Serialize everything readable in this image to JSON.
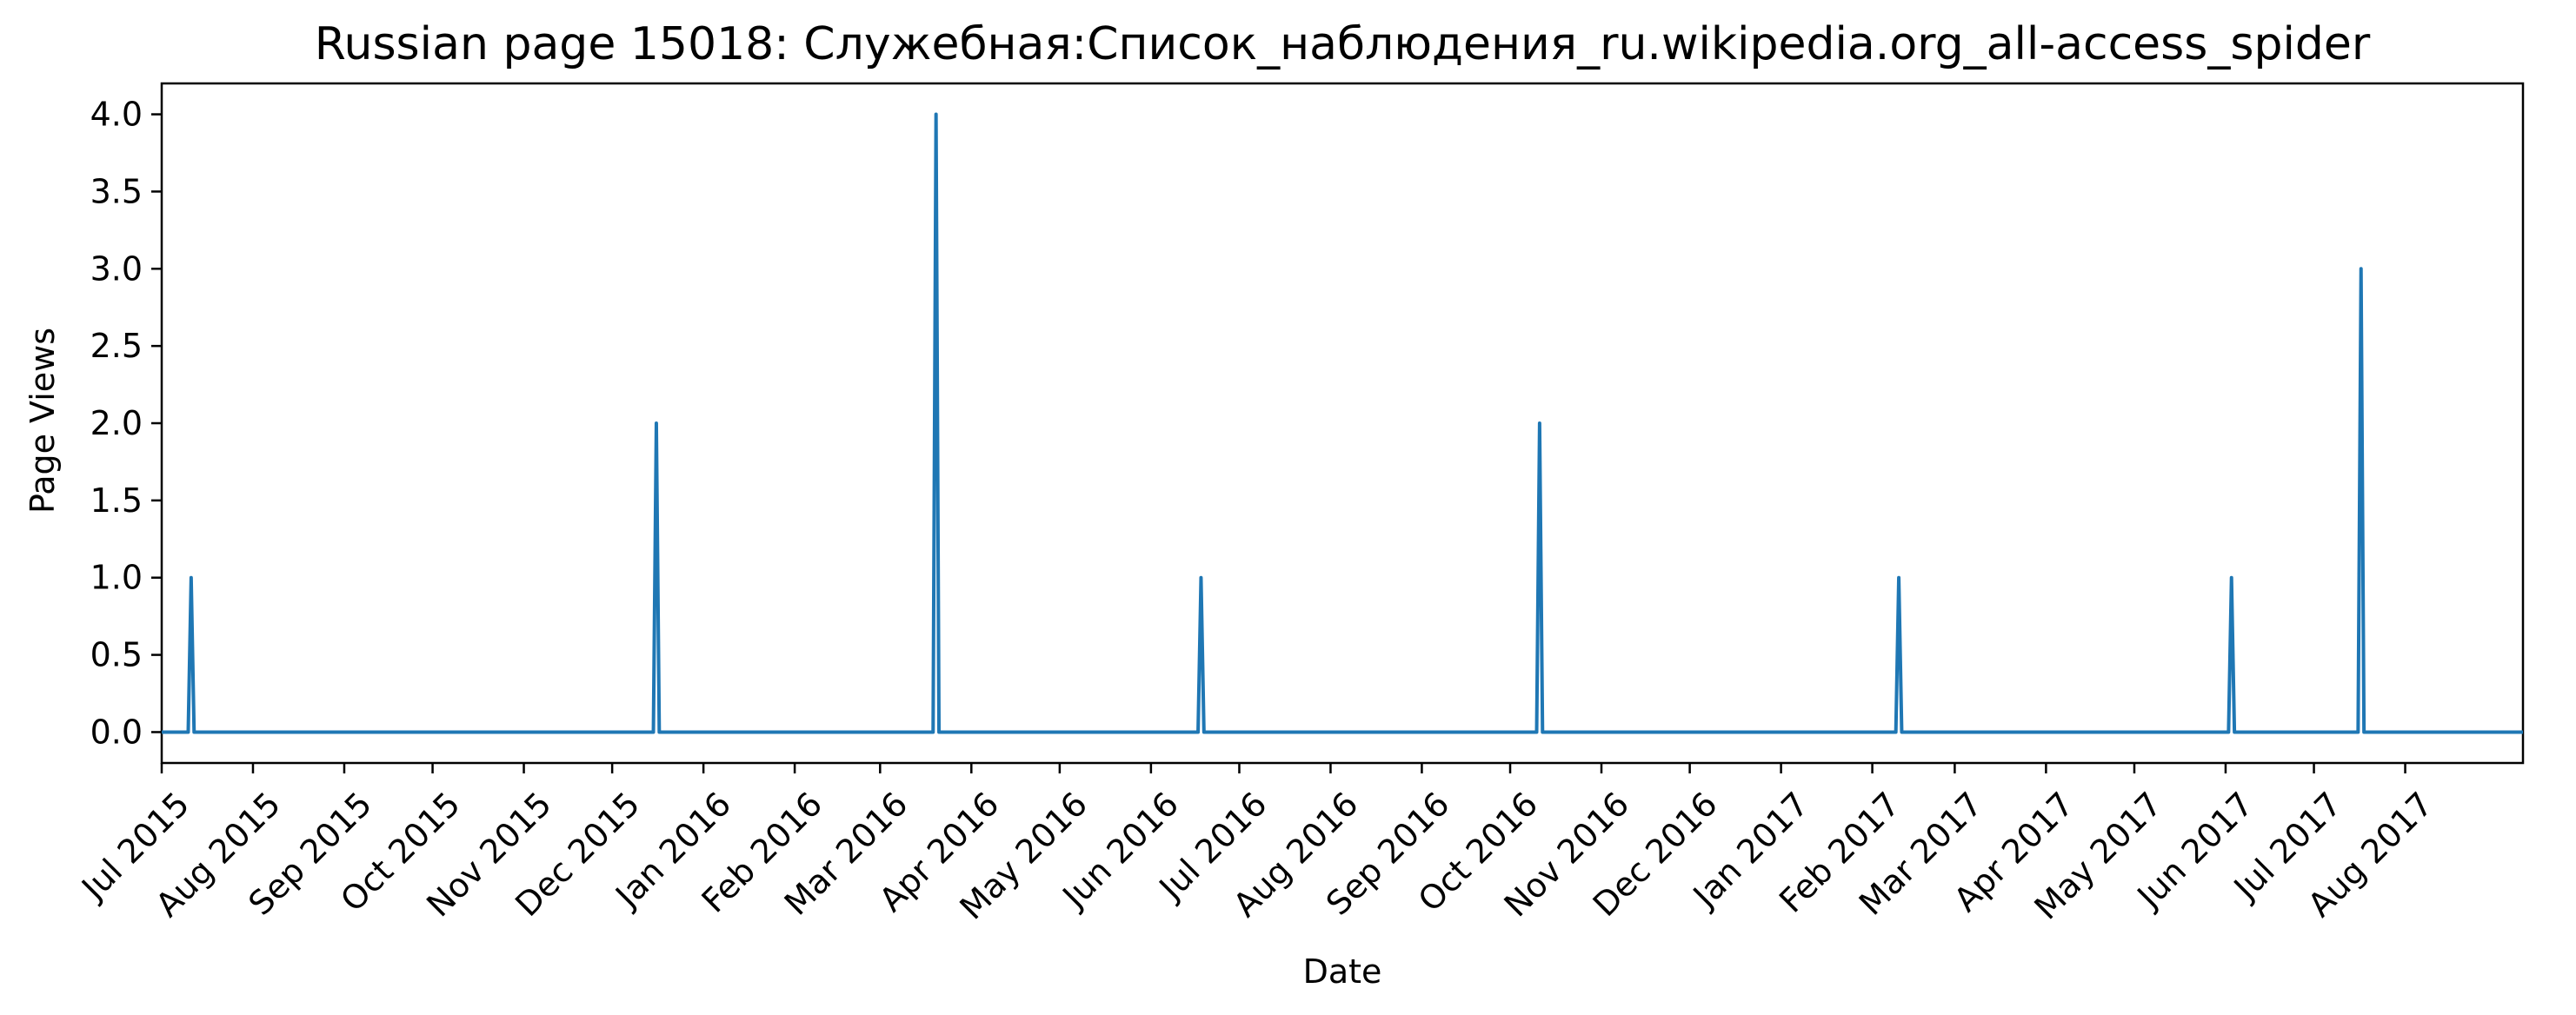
{
  "chart_data": {
    "type": "line",
    "title": "Russian page 15018: Служебная:Список_наблюдения_ru.wikipedia.org_all-access_spider",
    "xlabel": "Date",
    "ylabel": "Page Views",
    "x_range": [
      "2015-07-01",
      "2017-09-10"
    ],
    "ylim": [
      -0.2,
      4.2
    ],
    "grid": false,
    "y_ticks": [
      {
        "value": 0.0,
        "label": "0.0"
      },
      {
        "value": 0.5,
        "label": "0.5"
      },
      {
        "value": 1.0,
        "label": "1.0"
      },
      {
        "value": 1.5,
        "label": "1.5"
      },
      {
        "value": 2.0,
        "label": "2.0"
      },
      {
        "value": 2.5,
        "label": "2.5"
      },
      {
        "value": 3.0,
        "label": "3.0"
      },
      {
        "value": 3.5,
        "label": "3.5"
      },
      {
        "value": 4.0,
        "label": "4.0"
      }
    ],
    "x_ticks": [
      {
        "date": "2015-07-01",
        "label": "Jul 2015"
      },
      {
        "date": "2015-08-01",
        "label": "Aug 2015"
      },
      {
        "date": "2015-09-01",
        "label": "Sep 2015"
      },
      {
        "date": "2015-10-01",
        "label": "Oct 2015"
      },
      {
        "date": "2015-11-01",
        "label": "Nov 2015"
      },
      {
        "date": "2015-12-01",
        "label": "Dec 2015"
      },
      {
        "date": "2016-01-01",
        "label": "Jan 2016"
      },
      {
        "date": "2016-02-01",
        "label": "Feb 2016"
      },
      {
        "date": "2016-03-01",
        "label": "Mar 2016"
      },
      {
        "date": "2016-04-01",
        "label": "Apr 2016"
      },
      {
        "date": "2016-05-01",
        "label": "May 2016"
      },
      {
        "date": "2016-06-01",
        "label": "Jun 2016"
      },
      {
        "date": "2016-07-01",
        "label": "Jul 2016"
      },
      {
        "date": "2016-08-01",
        "label": "Aug 2016"
      },
      {
        "date": "2016-09-01",
        "label": "Sep 2016"
      },
      {
        "date": "2016-10-01",
        "label": "Oct 2016"
      },
      {
        "date": "2016-11-01",
        "label": "Nov 2016"
      },
      {
        "date": "2016-12-01",
        "label": "Dec 2016"
      },
      {
        "date": "2017-01-01",
        "label": "Jan 2017"
      },
      {
        "date": "2017-02-01",
        "label": "Feb 2017"
      },
      {
        "date": "2017-03-01",
        "label": "Mar 2017"
      },
      {
        "date": "2017-04-01",
        "label": "Apr 2017"
      },
      {
        "date": "2017-05-01",
        "label": "May 2017"
      },
      {
        "date": "2017-06-01",
        "label": "Jun 2017"
      },
      {
        "date": "2017-07-01",
        "label": "Jul 2017"
      },
      {
        "date": "2017-08-01",
        "label": "Aug 2017"
      }
    ],
    "series": [
      {
        "color": "#1f77b4",
        "start_date": "2015-07-01",
        "end_date": "2017-09-10",
        "baseline": 0,
        "spikes": [
          {
            "date": "2015-07-11",
            "value": 1
          },
          {
            "date": "2015-12-16",
            "value": 2
          },
          {
            "date": "2016-03-20",
            "value": 4
          },
          {
            "date": "2016-06-18",
            "value": 1
          },
          {
            "date": "2016-10-11",
            "value": 2
          },
          {
            "date": "2017-02-10",
            "value": 1
          },
          {
            "date": "2017-06-03",
            "value": 1
          },
          {
            "date": "2017-07-17",
            "value": 3
          }
        ]
      }
    ]
  }
}
